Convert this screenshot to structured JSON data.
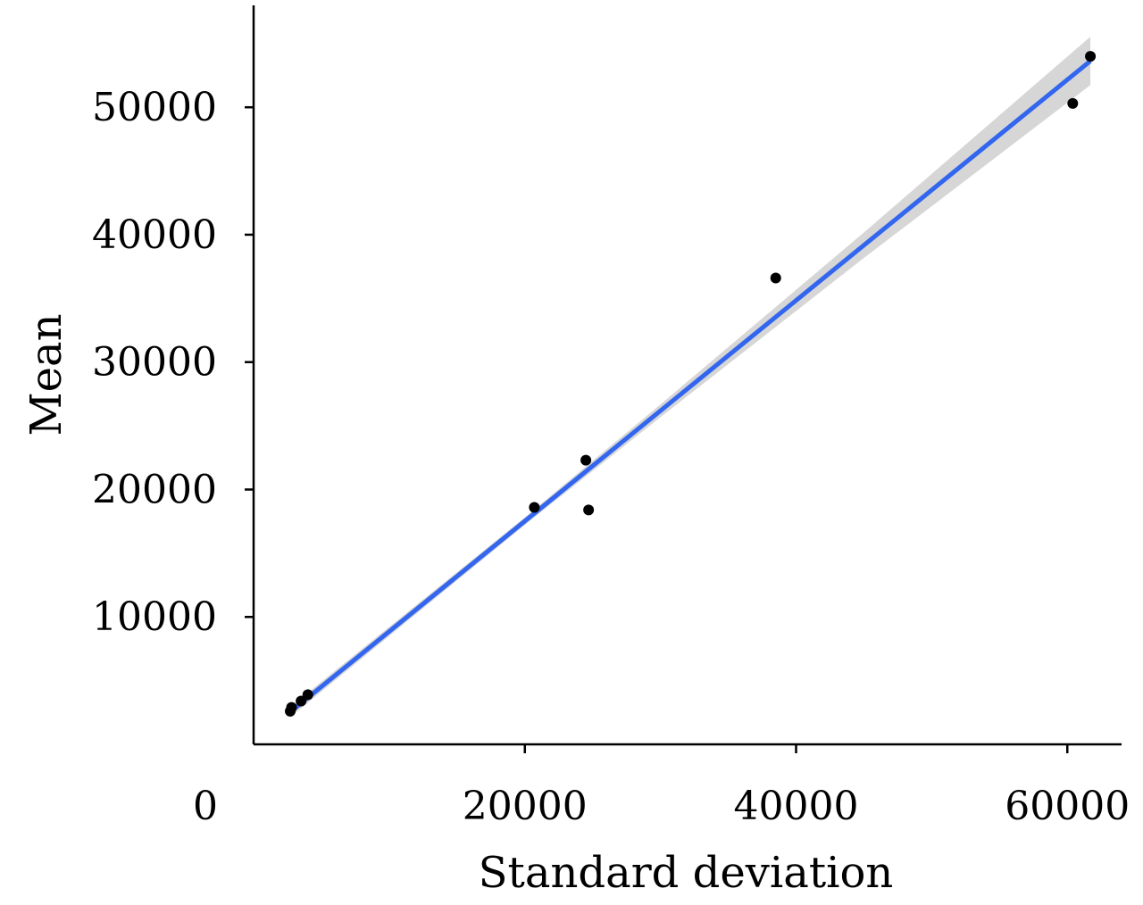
{
  "chart_data": {
    "type": "scatter",
    "xlabel": "Standard deviation",
    "ylabel": "Mean",
    "xlim": [
      0,
      64000
    ],
    "ylim": [
      0,
      58000
    ],
    "x_ticks": [
      {
        "value": 0,
        "label": "0"
      },
      {
        "value": 20000,
        "label": "20000"
      },
      {
        "value": 40000,
        "label": "40000"
      },
      {
        "value": 60000,
        "label": "60000"
      }
    ],
    "y_ticks": [
      {
        "value": 10000,
        "label": "10000"
      },
      {
        "value": 20000,
        "label": "20000"
      },
      {
        "value": 30000,
        "label": "30000"
      },
      {
        "value": 40000,
        "label": "40000"
      },
      {
        "value": 50000,
        "label": "50000"
      }
    ],
    "grid": false,
    "points": [
      {
        "x": 2700,
        "y": 2600
      },
      {
        "x": 2800,
        "y": 2900
      },
      {
        "x": 3500,
        "y": 3400
      },
      {
        "x": 4000,
        "y": 3900
      },
      {
        "x": 20700,
        "y": 18600
      },
      {
        "x": 24500,
        "y": 22300
      },
      {
        "x": 24700,
        "y": 18400
      },
      {
        "x": 38500,
        "y": 36600
      },
      {
        "x": 60400,
        "y": 50300
      },
      {
        "x": 61700,
        "y": 54000
      }
    ],
    "fit": {
      "type": "linear",
      "x_range": [
        2700,
        61700
      ],
      "slope": 0.8661,
      "intercept": 199,
      "color": "#3366ee",
      "band_color": "#d6d6d6",
      "band": [
        {
          "x": 2700,
          "half_width": 400
        },
        {
          "x": 20000,
          "half_width": 300
        },
        {
          "x": 30000,
          "half_width": 500
        },
        {
          "x": 45000,
          "half_width": 1000
        },
        {
          "x": 61700,
          "half_width": 1900
        }
      ]
    },
    "point_color": "#000000",
    "axis_color": "#000000"
  }
}
